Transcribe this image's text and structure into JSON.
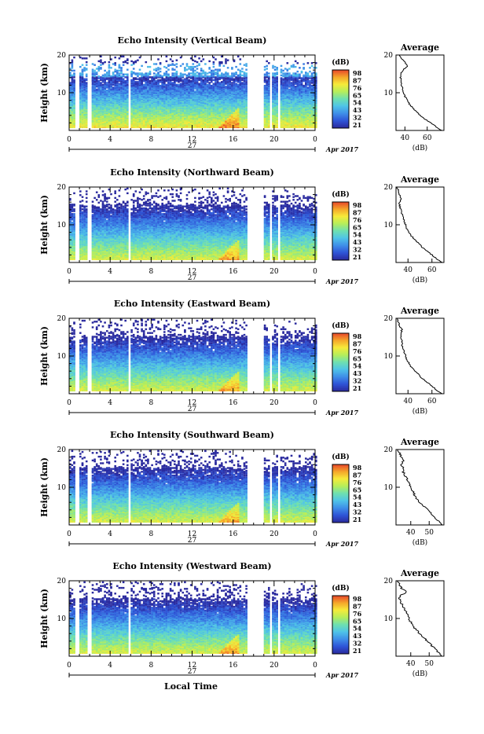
{
  "panels": [
    {
      "title": "Echo Intensity (Vertical Beam)",
      "avg_title": "Average",
      "avg_x_ticks": [
        "40",
        "60"
      ]
    },
    {
      "title": "Echo Intensity (Northward Beam)",
      "avg_title": "Average",
      "avg_x_ticks": [
        "40",
        "60"
      ]
    },
    {
      "title": "Echo Intensity (Eastward Beam)",
      "avg_title": "Average",
      "avg_x_ticks": [
        "40",
        "60"
      ]
    },
    {
      "title": "Echo Intensity (Southward Beam)",
      "avg_title": "Average",
      "avg_x_ticks": [
        "40",
        "50"
      ]
    },
    {
      "title": "Echo Intensity (Westward Beam)",
      "avg_title": "Average",
      "avg_x_ticks": [
        "40",
        "50"
      ]
    }
  ],
  "ylabel": "Height (km)",
  "y_ticks": [
    "20",
    "10"
  ],
  "x_ticks": [
    "0",
    "4",
    "8",
    "12",
    "16",
    "20",
    "0"
  ],
  "date_day": "27",
  "date_month": "Apr 2017",
  "xlabel": "Local Time",
  "colorbar": {
    "label": "(dB)",
    "ticks": [
      "98",
      "87",
      "76",
      "65",
      "54",
      "43",
      "32",
      "21"
    ]
  },
  "avg_xlabel": "(dB)",
  "avg_y_ticks": [
    "20",
    "10"
  ],
  "colors": {
    "scale": [
      "#2a2a9e",
      "#2f55d8",
      "#3f8fe8",
      "#4fc4e8",
      "#6fe0b0",
      "#b6ee5a",
      "#f6ea3a",
      "#f5a52a",
      "#e8452a"
    ]
  },
  "chart_data": [
    {
      "type": "heatmap",
      "title": "Echo Intensity (Vertical Beam)",
      "xlabel": "Local Time",
      "ylabel": "Height (km)",
      "xlim": [
        0,
        24
      ],
      "ylim": [
        0,
        20
      ],
      "clim": [
        21,
        98
      ],
      "gaps_h": [
        [
          0.6,
          0.9
        ],
        [
          1.6,
          2.0
        ],
        [
          5.7,
          6.0
        ],
        [
          17.3,
          18.8
        ],
        [
          19.4,
          19.6
        ],
        [
          20.3,
          20.5
        ]
      ],
      "avg_profile": {
        "xlabel": "(dB)",
        "xlim": [
          32,
          75
        ],
        "ylim": [
          0,
          20
        ],
        "h": [
          0,
          1,
          2,
          3,
          4,
          5,
          6,
          7,
          8,
          9,
          10,
          11,
          12,
          13,
          14,
          15,
          16,
          17,
          18,
          19,
          20
        ],
        "db": [
          73,
          68,
          63,
          58,
          54,
          50,
          47,
          44,
          42,
          40,
          39,
          38,
          37,
          37,
          36,
          36,
          38,
          42,
          40,
          37,
          35
        ]
      }
    },
    {
      "type": "heatmap",
      "title": "Echo Intensity (Northward Beam)",
      "xlabel": "Local Time",
      "ylabel": "Height (km)",
      "xlim": [
        0,
        24
      ],
      "ylim": [
        0,
        20
      ],
      "clim": [
        21,
        98
      ],
      "gaps_h": [
        [
          0.6,
          0.9
        ],
        [
          1.6,
          2.0
        ],
        [
          5.7,
          6.0
        ],
        [
          17.3,
          18.8
        ],
        [
          19.4,
          19.6
        ],
        [
          20.3,
          20.5
        ]
      ],
      "avg_profile": {
        "xlabel": "(dB)",
        "xlim": [
          30,
          70
        ],
        "ylim": [
          0,
          20
        ],
        "h": [
          0,
          1,
          2,
          3,
          4,
          5,
          6,
          7,
          8,
          9,
          10,
          11,
          12,
          13,
          14,
          15,
          16,
          17,
          18,
          19,
          20
        ],
        "db": [
          68,
          64,
          60,
          56,
          52,
          49,
          46,
          43,
          41,
          39,
          38,
          37,
          36,
          35,
          34,
          33,
          33,
          34,
          33,
          32,
          31
        ]
      }
    },
    {
      "type": "heatmap",
      "title": "Echo Intensity (Eastward Beam)",
      "xlabel": "Local Time",
      "ylabel": "Height (km)",
      "xlim": [
        0,
        24
      ],
      "ylim": [
        0,
        20
      ],
      "clim": [
        21,
        98
      ],
      "gaps_h": [
        [
          0.6,
          0.9
        ],
        [
          1.6,
          2.0
        ],
        [
          5.7,
          6.0
        ],
        [
          17.3,
          18.8
        ],
        [
          19.4,
          19.6
        ],
        [
          20.3,
          20.5
        ]
      ],
      "avg_profile": {
        "xlabel": "(dB)",
        "xlim": [
          30,
          70
        ],
        "ylim": [
          0,
          20
        ],
        "h": [
          0,
          1,
          2,
          3,
          4,
          5,
          6,
          7,
          8,
          9,
          10,
          11,
          12,
          13,
          14,
          15,
          16,
          17,
          18,
          19,
          20
        ],
        "db": [
          68,
          64,
          60,
          56,
          52,
          49,
          46,
          43,
          41,
          39,
          38,
          37,
          36,
          35,
          35,
          34,
          34,
          35,
          33,
          32,
          31
        ]
      }
    },
    {
      "type": "heatmap",
      "title": "Echo Intensity (Southward Beam)",
      "xlabel": "Local Time",
      "ylabel": "Height (km)",
      "xlim": [
        0,
        24
      ],
      "ylim": [
        0,
        20
      ],
      "clim": [
        21,
        98
      ],
      "gaps_h": [
        [
          0.6,
          0.9
        ],
        [
          1.6,
          2.0
        ],
        [
          5.7,
          6.0
        ],
        [
          17.3,
          18.8
        ],
        [
          19.4,
          19.6
        ],
        [
          20.3,
          20.5
        ]
      ],
      "avg_profile": {
        "xlabel": "(dB)",
        "xlim": [
          32,
          58
        ],
        "ylim": [
          0,
          20
        ],
        "h": [
          0,
          1,
          2,
          3,
          4,
          5,
          6,
          7,
          8,
          9,
          10,
          11,
          12,
          13,
          14,
          15,
          16,
          17,
          18,
          19,
          20
        ],
        "db": [
          57,
          55,
          53,
          51,
          49,
          47,
          45,
          43,
          42,
          41,
          40,
          39,
          38,
          37,
          36,
          36,
          35,
          36,
          35,
          34,
          33
        ]
      }
    },
    {
      "type": "heatmap",
      "title": "Echo Intensity (Westward Beam)",
      "xlabel": "Local Time",
      "ylabel": "Height (km)",
      "xlim": [
        0,
        24
      ],
      "ylim": [
        0,
        20
      ],
      "clim": [
        21,
        98
      ],
      "gaps_h": [
        [
          0.6,
          0.9
        ],
        [
          1.6,
          2.0
        ],
        [
          5.7,
          6.0
        ],
        [
          17.3,
          18.8
        ],
        [
          19.4,
          19.6
        ],
        [
          20.3,
          20.5
        ]
      ],
      "avg_profile": {
        "xlabel": "(dB)",
        "xlim": [
          32,
          58
        ],
        "ylim": [
          0,
          20
        ],
        "h": [
          0,
          1,
          2,
          3,
          4,
          5,
          6,
          7,
          8,
          9,
          10,
          11,
          12,
          13,
          14,
          15,
          16,
          17,
          18,
          19,
          20
        ],
        "db": [
          57,
          55,
          53,
          51,
          49,
          47,
          45,
          43,
          41,
          40,
          39,
          38,
          37,
          36,
          35,
          34,
          34,
          38,
          35,
          34,
          33
        ]
      }
    }
  ]
}
